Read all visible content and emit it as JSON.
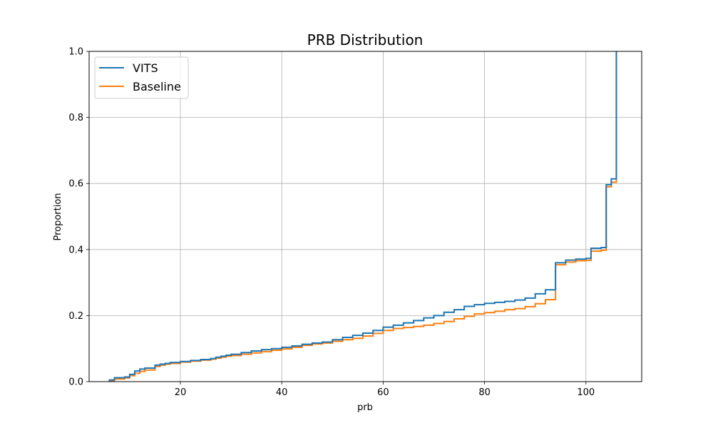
{
  "chart_data": {
    "type": "line",
    "subtype": "ecdf-step",
    "title": "PRB Distribution",
    "xlabel": "prb",
    "ylabel": "Proportion",
    "xlim": [
      2,
      111
    ],
    "ylim": [
      0,
      1.0
    ],
    "xticks": [
      20,
      40,
      60,
      80,
      100
    ],
    "yticks": [
      0.0,
      0.2,
      0.4,
      0.6,
      0.8,
      1.0
    ],
    "ytick_labels": [
      "0.0",
      "0.2",
      "0.4",
      "0.6",
      "0.8",
      "1.0"
    ],
    "grid": true,
    "legend_position": "upper-left",
    "series": [
      {
        "name": "VITS",
        "color": "#1f77b4",
        "x": [
          6,
          7,
          9,
          10,
          11,
          12,
          13,
          15,
          16,
          17,
          18,
          20,
          22,
          24,
          26,
          27,
          28,
          29,
          30,
          32,
          34,
          36,
          38,
          40,
          42,
          44,
          46,
          48,
          50,
          52,
          54,
          56,
          58,
          60,
          62,
          64,
          66,
          68,
          70,
          72,
          74,
          76,
          78,
          80,
          82,
          84,
          86,
          88,
          90,
          92,
          94,
          96,
          98,
          100,
          101,
          103,
          104,
          105,
          106
        ],
        "y": [
          0.005,
          0.012,
          0.014,
          0.022,
          0.032,
          0.038,
          0.041,
          0.05,
          0.053,
          0.055,
          0.058,
          0.061,
          0.064,
          0.067,
          0.07,
          0.074,
          0.077,
          0.08,
          0.083,
          0.088,
          0.093,
          0.097,
          0.1,
          0.104,
          0.108,
          0.113,
          0.117,
          0.12,
          0.127,
          0.134,
          0.14,
          0.147,
          0.155,
          0.165,
          0.171,
          0.178,
          0.185,
          0.193,
          0.2,
          0.21,
          0.218,
          0.228,
          0.233,
          0.237,
          0.24,
          0.243,
          0.247,
          0.253,
          0.266,
          0.278,
          0.36,
          0.368,
          0.371,
          0.373,
          0.404,
          0.406,
          0.596,
          0.614,
          1.0
        ]
      },
      {
        "name": "Baseline",
        "color": "#ff7f0e",
        "x": [
          6,
          7,
          9,
          10,
          11,
          12,
          13,
          15,
          16,
          17,
          18,
          20,
          22,
          24,
          26,
          27,
          28,
          29,
          30,
          32,
          34,
          36,
          38,
          40,
          42,
          44,
          46,
          48,
          50,
          52,
          54,
          56,
          58,
          60,
          62,
          64,
          66,
          68,
          70,
          72,
          74,
          76,
          78,
          80,
          82,
          84,
          86,
          88,
          90,
          92,
          94,
          96,
          98,
          100,
          101,
          103,
          104,
          105,
          106
        ],
        "y": [
          0.002,
          0.008,
          0.011,
          0.018,
          0.025,
          0.031,
          0.035,
          0.046,
          0.05,
          0.053,
          0.055,
          0.059,
          0.062,
          0.065,
          0.068,
          0.071,
          0.074,
          0.077,
          0.079,
          0.083,
          0.087,
          0.091,
          0.095,
          0.099,
          0.104,
          0.11,
          0.114,
          0.117,
          0.122,
          0.127,
          0.131,
          0.138,
          0.146,
          0.155,
          0.161,
          0.164,
          0.167,
          0.171,
          0.176,
          0.182,
          0.19,
          0.198,
          0.205,
          0.209,
          0.213,
          0.218,
          0.221,
          0.227,
          0.236,
          0.248,
          0.354,
          0.362,
          0.366,
          0.367,
          0.395,
          0.398,
          0.59,
          0.604,
          1.0
        ]
      }
    ]
  }
}
